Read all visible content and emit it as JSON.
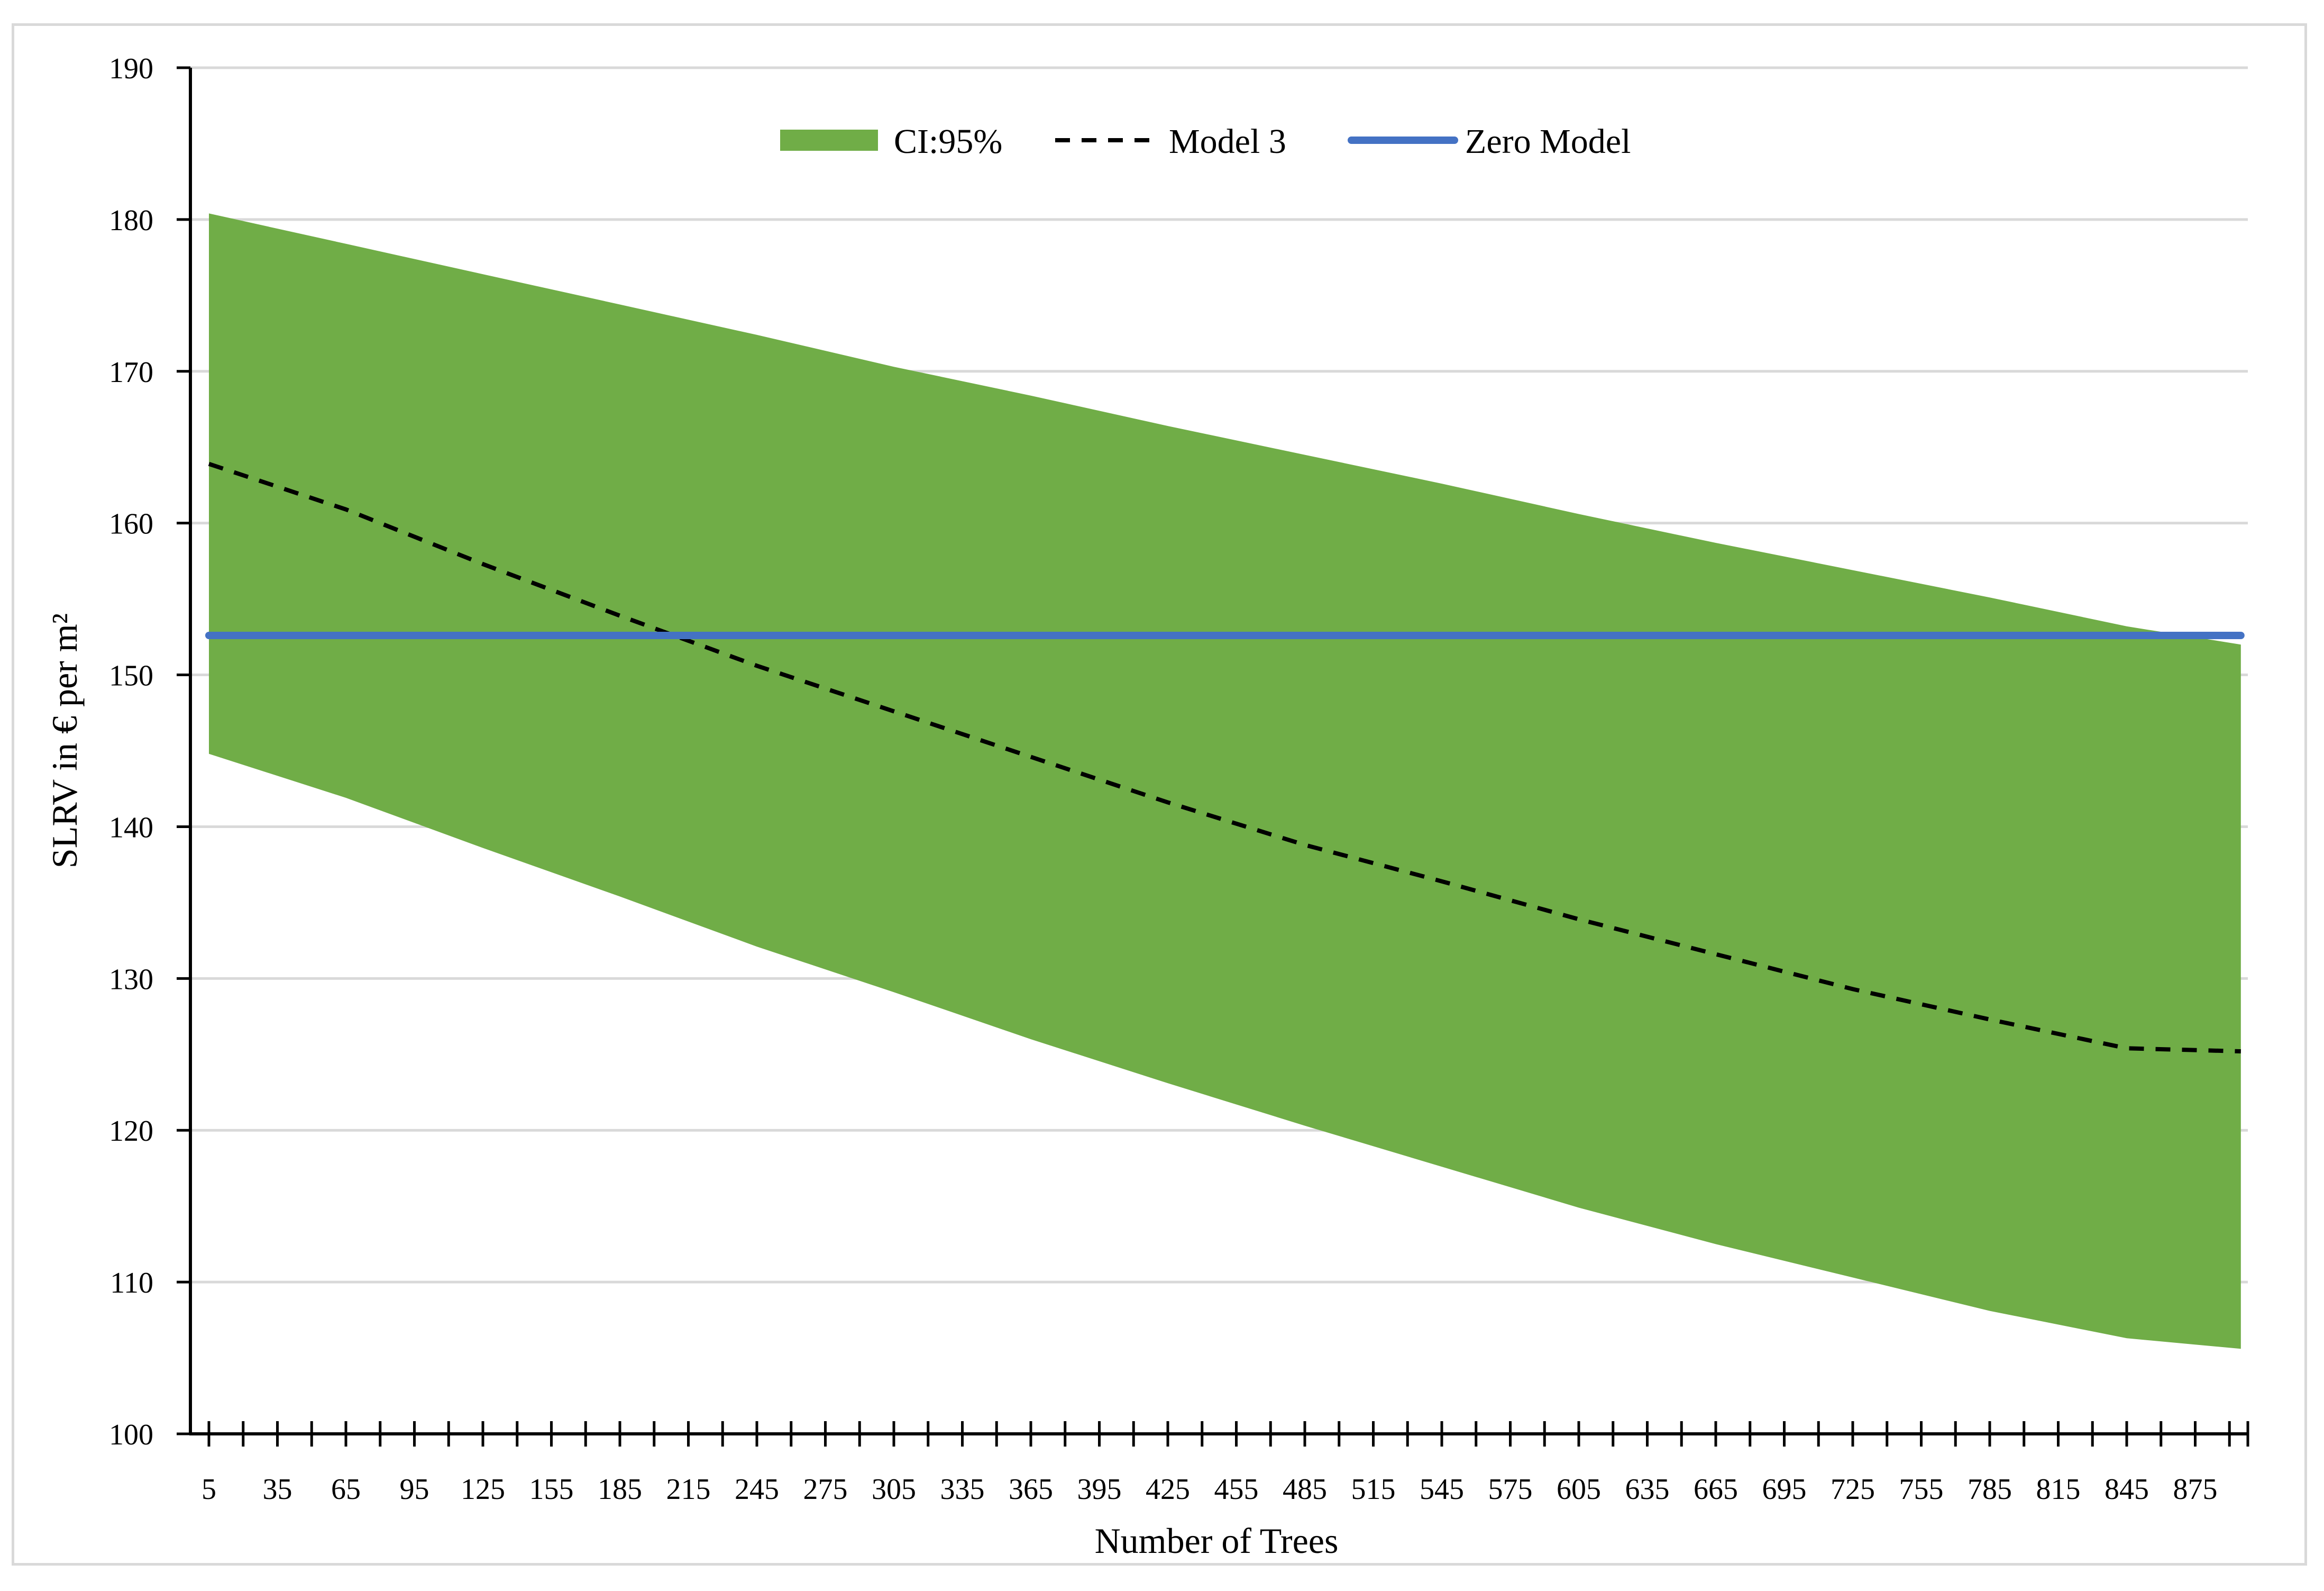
{
  "chart_data": {
    "type": "line",
    "xlabel": "Number of Trees",
    "ylabel": "SLRV in € per m²",
    "ylim": [
      100,
      190
    ],
    "yticks": [
      100,
      110,
      120,
      130,
      140,
      150,
      160,
      170,
      180,
      190
    ],
    "x_tick_labels": [
      "5",
      "35",
      "65",
      "95",
      "125",
      "155",
      "185",
      "215",
      "245",
      "275",
      "305",
      "335",
      "365",
      "395",
      "425",
      "455",
      "485",
      "515",
      "545",
      "575",
      "605",
      "635",
      "665",
      "695",
      "725",
      "755",
      "785",
      "815",
      "845",
      "875"
    ],
    "grid": "horizontal",
    "legend_position": "top-center",
    "x": [
      5,
      65,
      125,
      185,
      245,
      305,
      365,
      425,
      485,
      545,
      605,
      665,
      725,
      785,
      845,
      895
    ],
    "series": [
      {
        "name": "CI:95%",
        "kind": "band",
        "color": "#70ad47",
        "upper": [
          180.4,
          178.4,
          176.4,
          174.4,
          172.4,
          170.3,
          168.4,
          166.4,
          164.5,
          162.6,
          160.6,
          158.7,
          156.9,
          155.1,
          153.2,
          152.0
        ],
        "lower": [
          144.8,
          141.9,
          138.6,
          135.4,
          132.1,
          129.1,
          126.0,
          123.1,
          120.3,
          117.6,
          114.9,
          112.5,
          110.3,
          108.1,
          106.3,
          105.6
        ]
      },
      {
        "name": "Model 3",
        "kind": "line",
        "style": "dashed",
        "color": "#000000",
        "values": [
          163.9,
          160.9,
          157.3,
          153.9,
          150.6,
          147.6,
          144.6,
          141.6,
          138.8,
          136.4,
          133.9,
          131.6,
          129.3,
          127.3,
          125.4,
          125.2
        ]
      },
      {
        "name": "Zero Model",
        "kind": "line",
        "style": "solid",
        "color": "#4472c4",
        "values": [
          152.6,
          152.6,
          152.6,
          152.6,
          152.6,
          152.6,
          152.6,
          152.6,
          152.6,
          152.6,
          152.6,
          152.6,
          152.6,
          152.6,
          152.6,
          152.6
        ]
      }
    ]
  }
}
